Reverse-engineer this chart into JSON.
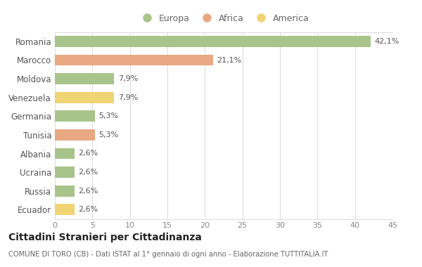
{
  "categories": [
    "Romania",
    "Marocco",
    "Moldova",
    "Venezuela",
    "Germania",
    "Tunisia",
    "Albania",
    "Ucraina",
    "Russia",
    "Ecuador"
  ],
  "values": [
    42.1,
    21.1,
    7.9,
    7.9,
    5.3,
    5.3,
    2.6,
    2.6,
    2.6,
    2.6
  ],
  "labels": [
    "42,1%",
    "21,1%",
    "7,9%",
    "7,9%",
    "5,3%",
    "5,3%",
    "2,6%",
    "2,6%",
    "2,6%",
    "2,6%"
  ],
  "colors": [
    "#a8c48a",
    "#e8a882",
    "#a8c48a",
    "#f0d474",
    "#a8c48a",
    "#e8a882",
    "#a8c48a",
    "#a8c48a",
    "#a8c48a",
    "#f0d474"
  ],
  "legend_labels": [
    "Europa",
    "Africa",
    "America"
  ],
  "legend_colors": [
    "#a8c48a",
    "#e8a882",
    "#f0d474"
  ],
  "title": "Cittadini Stranieri per Cittadinanza",
  "subtitle": "COMUNE DI TORO (CB) - Dati ISTAT al 1° gennaio di ogni anno - Elaborazione TUTTITALIA.IT",
  "xlim": [
    0,
    45
  ],
  "xticks": [
    0,
    5,
    10,
    15,
    20,
    25,
    30,
    35,
    40,
    45
  ],
  "bg_color": "#ffffff",
  "grid_color": "#dddddd",
  "bar_height": 0.6,
  "label_fontsize": 8,
  "ytick_fontsize": 8.5,
  "xtick_fontsize": 8
}
